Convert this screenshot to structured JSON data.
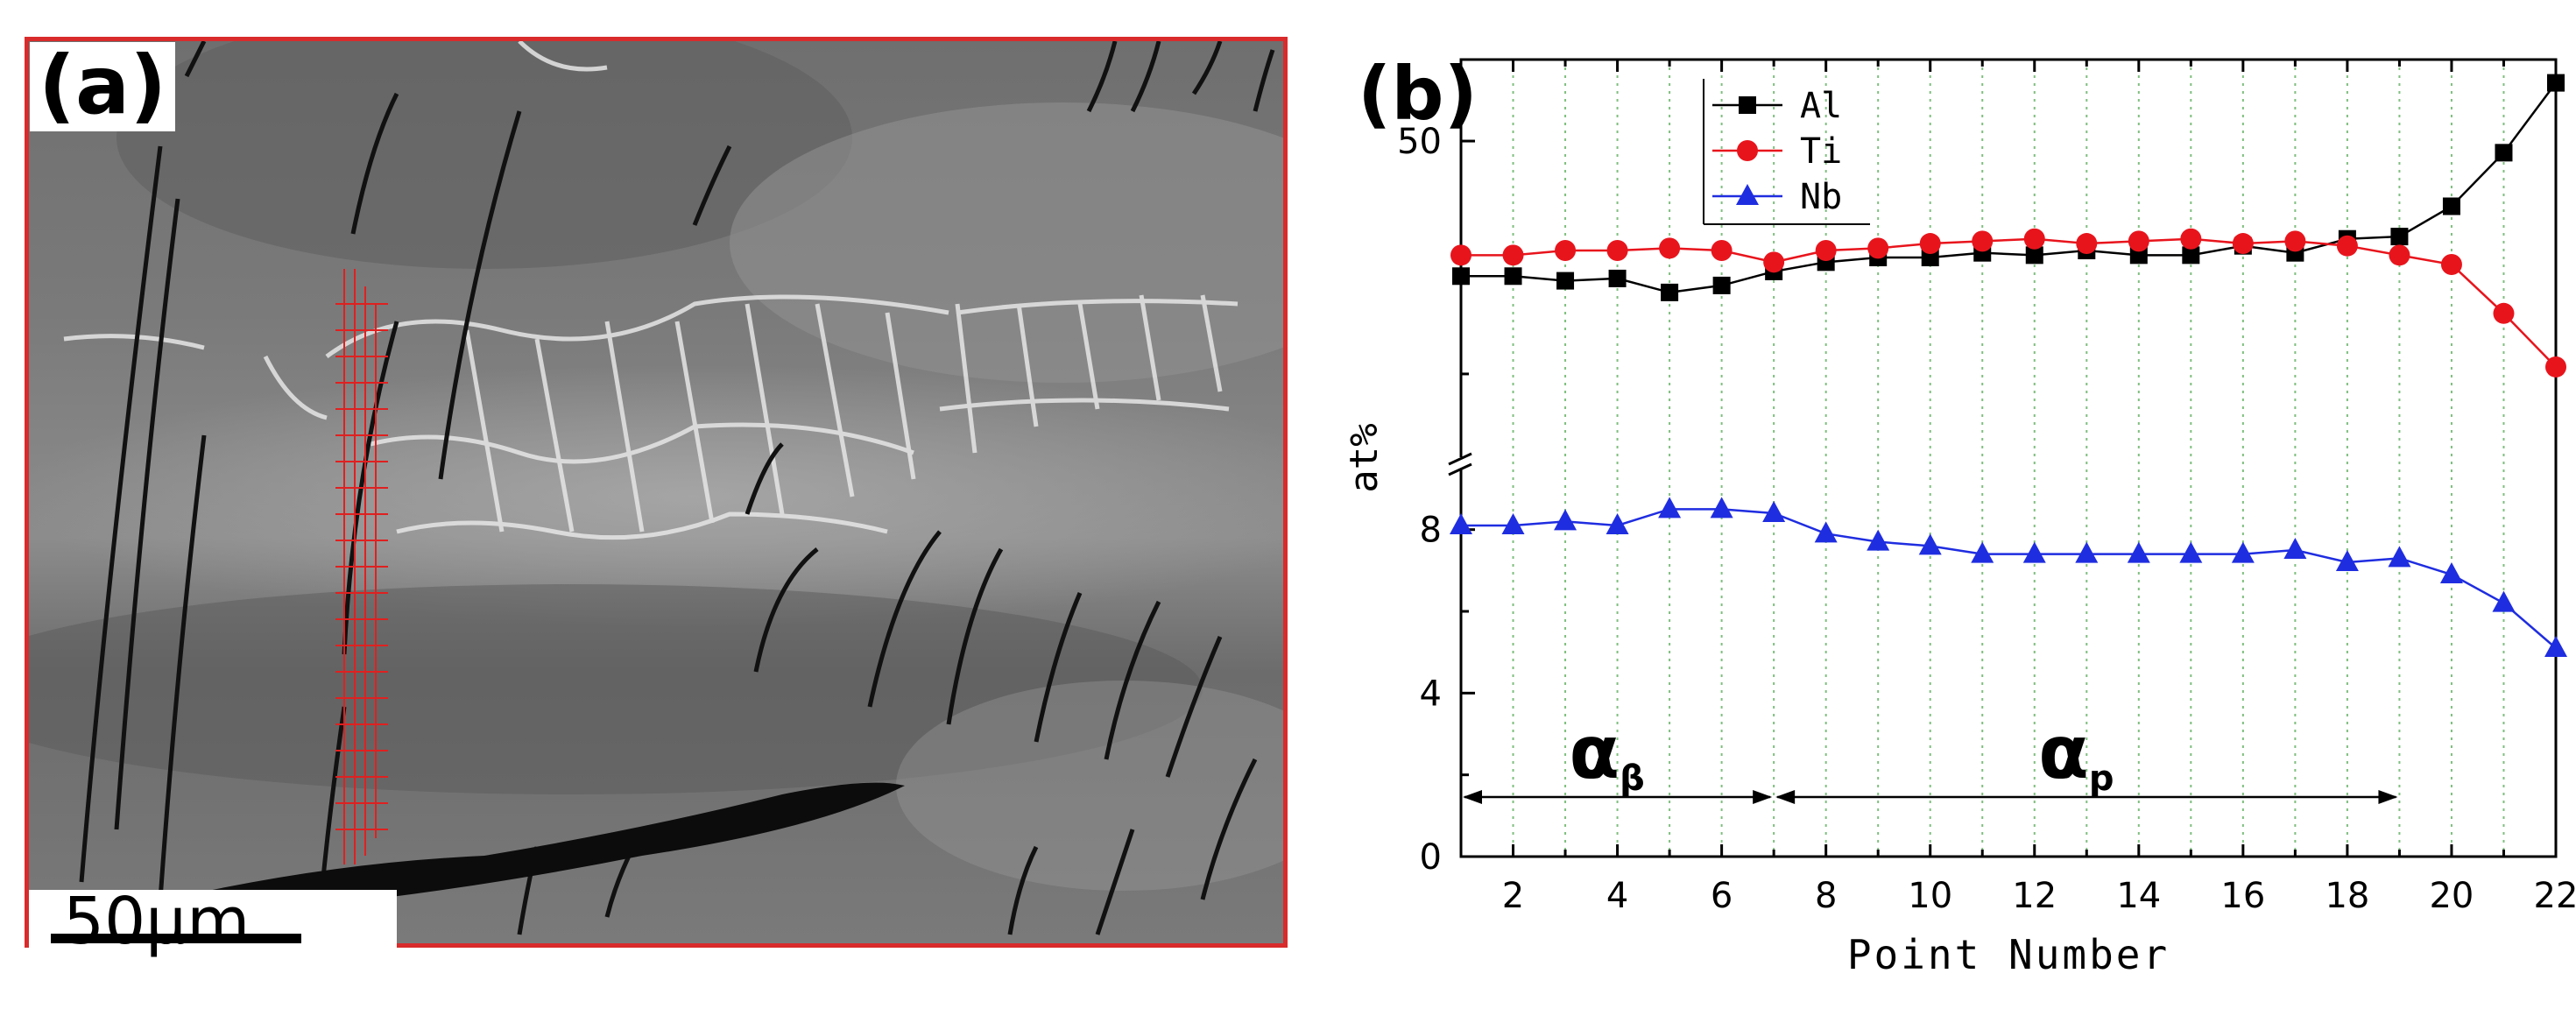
{
  "panel_a": {
    "label": "(a)",
    "scalebar_label": "50μm"
  },
  "panel_b": {
    "label": "(b)"
  },
  "chart_data": {
    "type": "line",
    "xlabel": "Point Number",
    "ylabel": "at%",
    "x": [
      1,
      2,
      3,
      4,
      5,
      6,
      7,
      8,
      9,
      10,
      11,
      12,
      13,
      14,
      15,
      16,
      17,
      18,
      19,
      20,
      21,
      22
    ],
    "xticks": [
      2,
      4,
      6,
      8,
      10,
      12,
      14,
      16,
      18,
      20,
      22
    ],
    "xlim": [
      1,
      22
    ],
    "axis_break": true,
    "lower_yticks": [
      0,
      4,
      8
    ],
    "upper_yticks": [
      50
    ],
    "series": [
      {
        "name": "Al",
        "color": "#000000",
        "marker": "square",
        "values": [
          44.2,
          44.2,
          44.0,
          44.1,
          43.5,
          43.8,
          44.4,
          44.8,
          45.0,
          45.0,
          45.2,
          45.1,
          45.3,
          45.1,
          45.1,
          45.5,
          45.2,
          45.8,
          45.9,
          47.2,
          49.5,
          52.5
        ]
      },
      {
        "name": "Ti",
        "color": "#e8141c",
        "marker": "circle",
        "values": [
          45.1,
          45.1,
          45.3,
          45.3,
          45.4,
          45.3,
          44.8,
          45.3,
          45.4,
          45.6,
          45.7,
          45.8,
          45.6,
          45.7,
          45.8,
          45.6,
          45.7,
          45.5,
          45.1,
          44.7,
          42.6,
          40.3
        ]
      },
      {
        "name": "Nb",
        "color": "#1f2de0",
        "marker": "triangle",
        "values": [
          8.1,
          8.1,
          8.2,
          8.1,
          8.5,
          8.5,
          8.4,
          7.9,
          7.7,
          7.6,
          7.4,
          7.4,
          7.4,
          7.4,
          7.4,
          7.4,
          7.5,
          7.2,
          7.3,
          6.9,
          6.2,
          5.1
        ]
      }
    ],
    "annotations": [
      {
        "text": "α",
        "subscript": "β",
        "from": 1,
        "to": 7
      },
      {
        "text": "α",
        "subscript": "p",
        "from": 7,
        "to": 19
      }
    ],
    "legend": "top-left",
    "grid": "vertical dotted green"
  }
}
